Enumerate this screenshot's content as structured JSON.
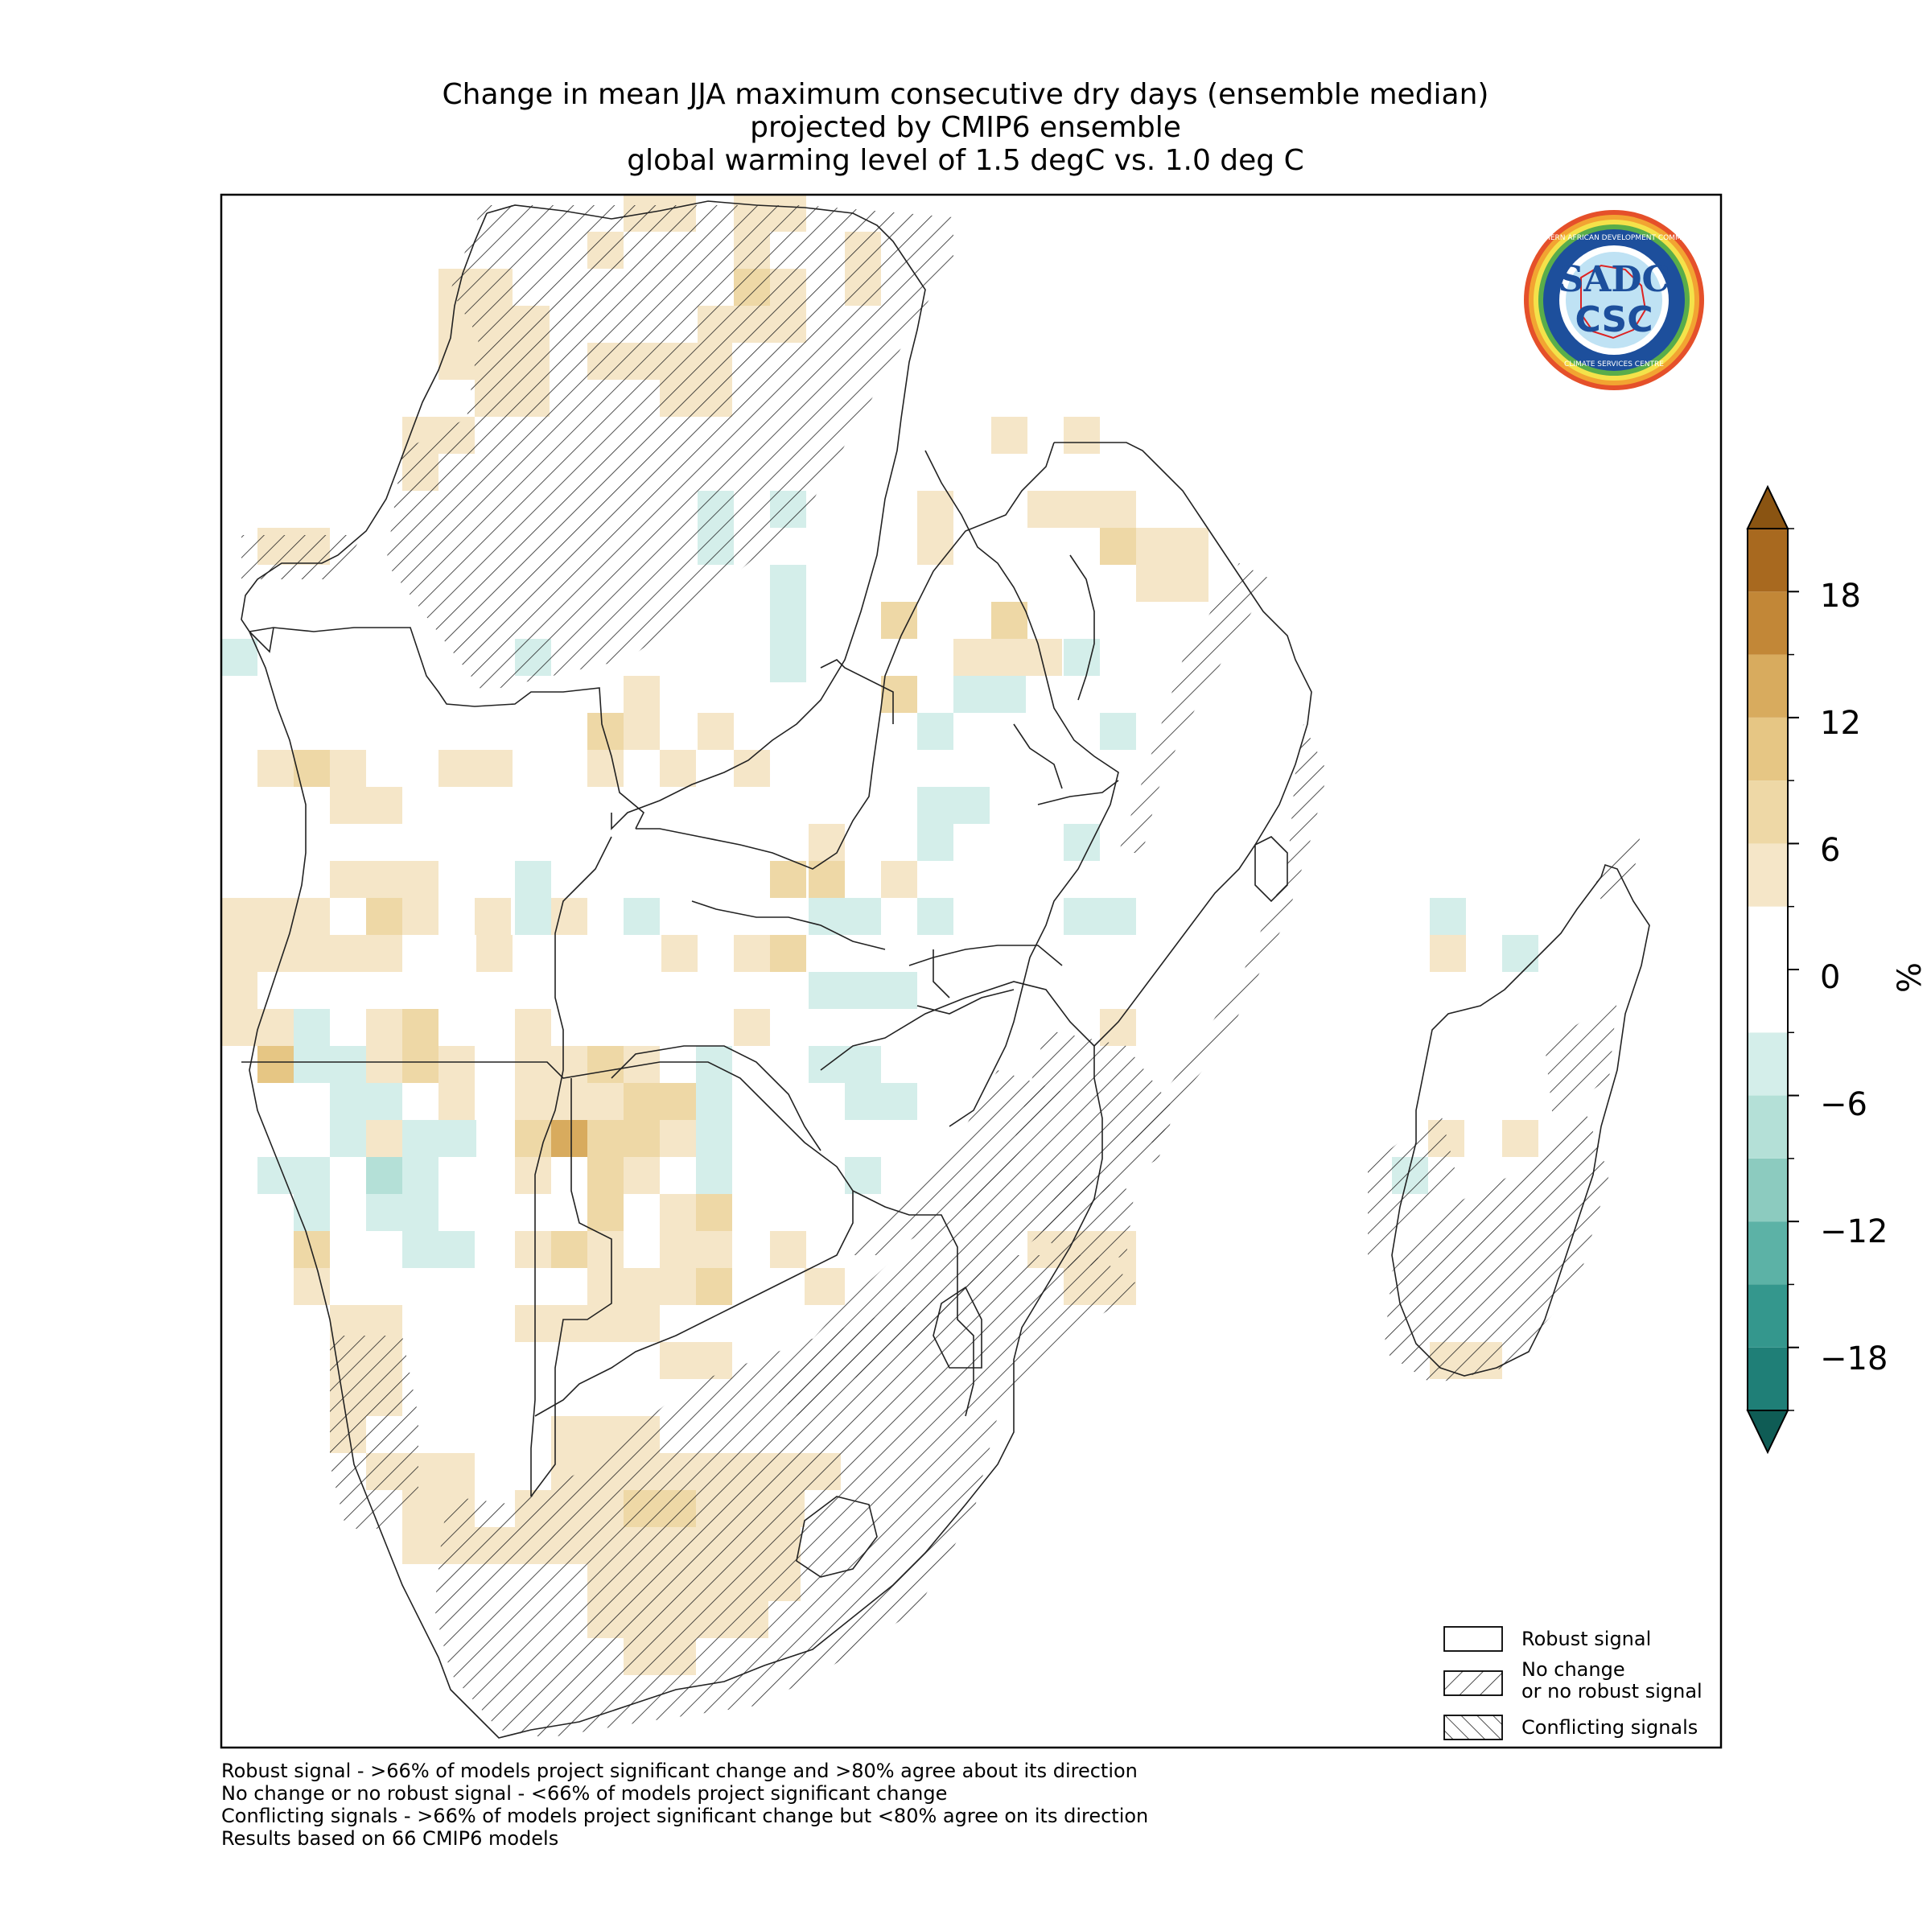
{
  "title": {
    "line1": "Change in mean JJA maximum consecutive dry days (ensemble median)",
    "line2": "projected by CMIP6 ensemble",
    "line3": "global warming level of 1.5 degC vs. 1.0 deg C"
  },
  "logo": {
    "text_top": "SOUTHERN AFRICAN DEVELOPMENT COMMUNITY",
    "text_bottom": "CLIMATE SERVICES CENTRE",
    "mark1": "SADC",
    "mark2": "CSC"
  },
  "legend": {
    "items": [
      {
        "label": "Robust signal",
        "pattern": "none"
      },
      {
        "label_line1": "No change",
        "label_line2": "or no robust signal",
        "pattern": "forward-hatch"
      },
      {
        "label": "Conflicting signals",
        "pattern": "back-hatch"
      }
    ]
  },
  "colorbar": {
    "unit": "%",
    "ticks": [
      "18",
      "12",
      "6",
      "0",
      "−6",
      "−12",
      "−18"
    ],
    "tick_values": [
      18,
      12,
      6,
      0,
      -6,
      -12,
      -18
    ],
    "range": [
      -21,
      21
    ],
    "levels": [
      -21,
      -18,
      -15,
      -12,
      -9,
      -6,
      -3,
      3,
      6,
      9,
      12,
      15,
      18,
      21
    ],
    "colors": [
      "#1f7f77",
      "#34978d",
      "#5cb2a6",
      "#8ccbbf",
      "#b4e0d7",
      "#d4eeea",
      "#ffffff",
      "#f5e6c8",
      "#eed8a6",
      "#e6c684",
      "#d8ab5e",
      "#c28737",
      "#a8691f"
    ],
    "extend_low_color": "#0f5c55",
    "extend_high_color": "#8a5412"
  },
  "footnotes": [
    "Robust signal - >66% of models project significant change and >80% agree about its direction",
    "No change or no robust signal - <66% of models project significant change",
    "Conflicting signals - >66% of models project significant change but <80% agree on its direction",
    "Results based on 66 CMIP6 models"
  ]
}
